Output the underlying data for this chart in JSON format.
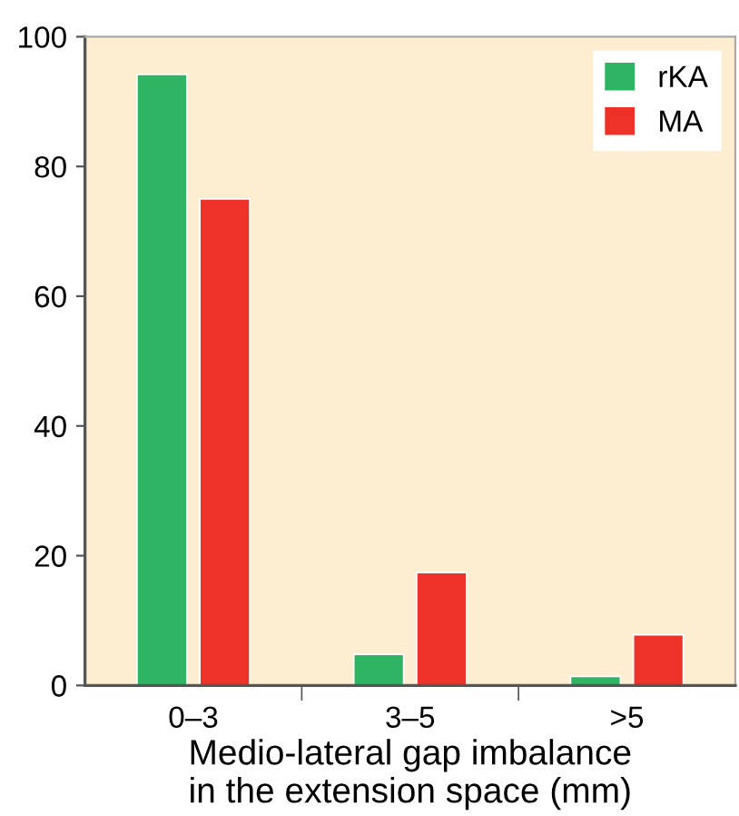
{
  "chart_data": {
    "type": "bar",
    "xlabel": "Medio-lateral gap imbalance\nin the extension space (mm)",
    "categories": [
      "0–3",
      "3–5",
      ">5"
    ],
    "series": [
      {
        "name": "rKA",
        "color": "#2eb463",
        "values": [
          94.2,
          4.8,
          1.4
        ]
      },
      {
        "name": "MA",
        "color": "#ee3129",
        "values": [
          75,
          17.4,
          7.8
        ]
      }
    ],
    "ylim": [
      0,
      100
    ],
    "yticks": [
      0,
      20,
      40,
      60,
      80,
      100
    ],
    "grid": false,
    "legend": "top right"
  }
}
